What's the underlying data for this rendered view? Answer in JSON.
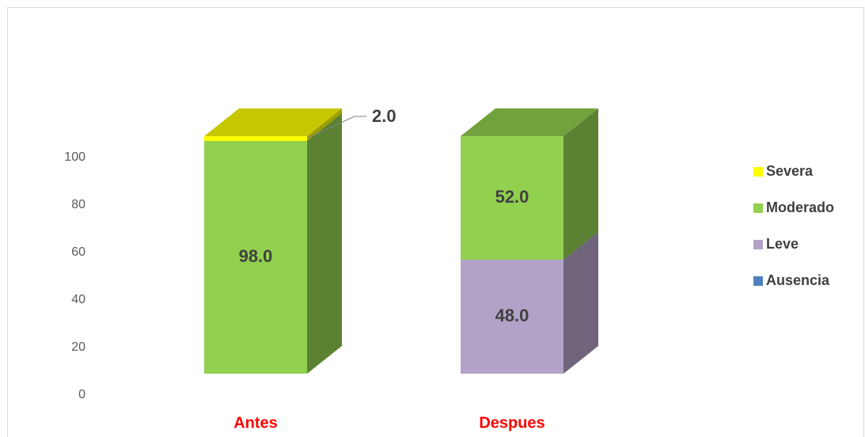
{
  "chart_data": {
    "type": "bar3d_stacked",
    "categories": [
      "Antes",
      "Despues"
    ],
    "series": [
      {
        "name": "Ausencia",
        "color": "#4f81bd",
        "values": [
          0,
          0
        ],
        "value_labels": [
          null,
          null
        ]
      },
      {
        "name": "Leve",
        "color": "#b3a2c7",
        "values": [
          0,
          48
        ],
        "value_labels": [
          null,
          "48.0"
        ]
      },
      {
        "name": "Moderado",
        "color": "#92d050",
        "values": [
          98,
          52
        ],
        "value_labels": [
          "98.0",
          "52.0"
        ]
      },
      {
        "name": "Severa",
        "color": "#ffff00",
        "values": [
          2,
          0
        ],
        "value_labels": [
          "2.0",
          null
        ]
      }
    ],
    "ylim": [
      0,
      100
    ],
    "yticks": [
      0,
      20,
      40,
      60,
      80,
      100
    ],
    "legend": "right"
  }
}
